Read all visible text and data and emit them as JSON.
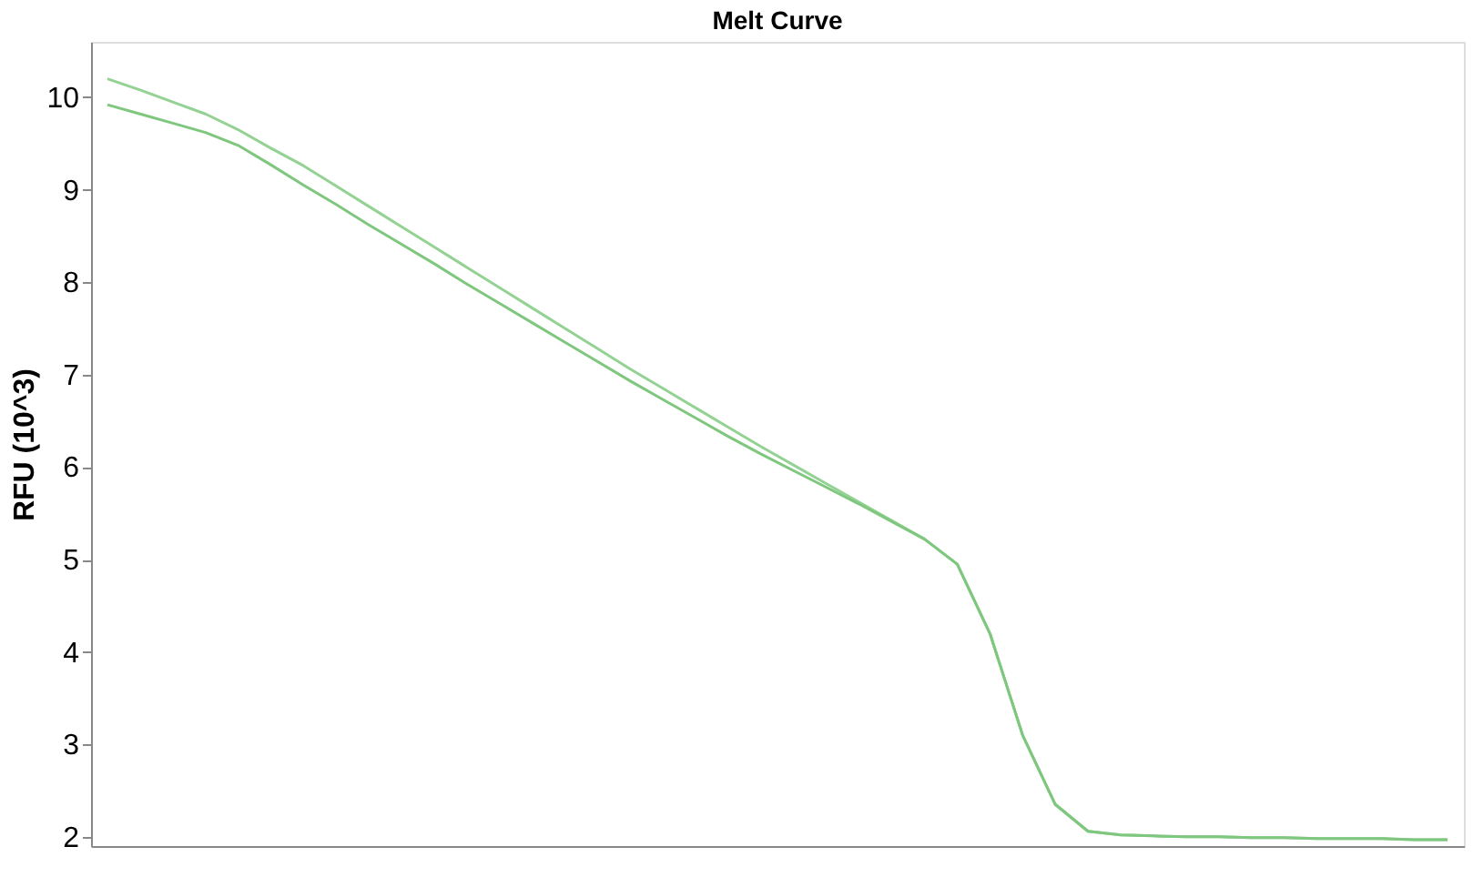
{
  "chart_data": {
    "type": "line",
    "title": "Melt Curve",
    "ylabel": "RFU (10^3)",
    "categories": [
      null,
      null,
      null,
      null,
      null,
      null,
      null,
      null,
      null,
      null,
      null,
      null,
      null,
      null,
      null,
      null,
      null,
      null,
      null,
      null,
      null,
      null,
      null,
      null,
      null,
      null,
      null,
      null,
      null,
      null,
      null,
      null,
      null,
      null,
      null,
      null,
      null,
      null,
      null,
      null,
      null,
      null
    ],
    "series": [
      {
        "color": "#94d294",
        "values": [
          10.2,
          10.08,
          9.95,
          9.82,
          9.65,
          9.45,
          9.26,
          9.04,
          8.82,
          8.6,
          8.38,
          8.16,
          7.94,
          7.72,
          7.5,
          7.28,
          7.06,
          6.85,
          6.64,
          6.43,
          6.22,
          6.02,
          5.82,
          5.62,
          5.42,
          5.22,
          4.95,
          4.2,
          3.1,
          2.35,
          2.06,
          2.02,
          2.01,
          2.0,
          2.0,
          1.99,
          1.99,
          1.98,
          1.98,
          1.98,
          1.97,
          1.97
        ]
      },
      {
        "color": "#7fc77f",
        "values": [
          9.92,
          9.82,
          9.72,
          9.62,
          9.48,
          9.27,
          9.05,
          8.84,
          8.62,
          8.41,
          8.2,
          7.98,
          7.77,
          7.56,
          7.35,
          7.14,
          6.93,
          6.73,
          6.53,
          6.33,
          6.14,
          5.96,
          5.78,
          5.6,
          5.41,
          5.22,
          4.95,
          4.2,
          3.1,
          2.35,
          2.06,
          2.02,
          2.01,
          2.0,
          2.0,
          1.99,
          1.99,
          1.98,
          1.98,
          1.98,
          1.97,
          1.97
        ]
      }
    ],
    "ylim": [
      1.9,
      10.6
    ],
    "yticks": [
      2,
      3,
      4,
      5,
      6,
      7,
      8,
      9,
      10
    ],
    "grid": false,
    "legend": false
  }
}
